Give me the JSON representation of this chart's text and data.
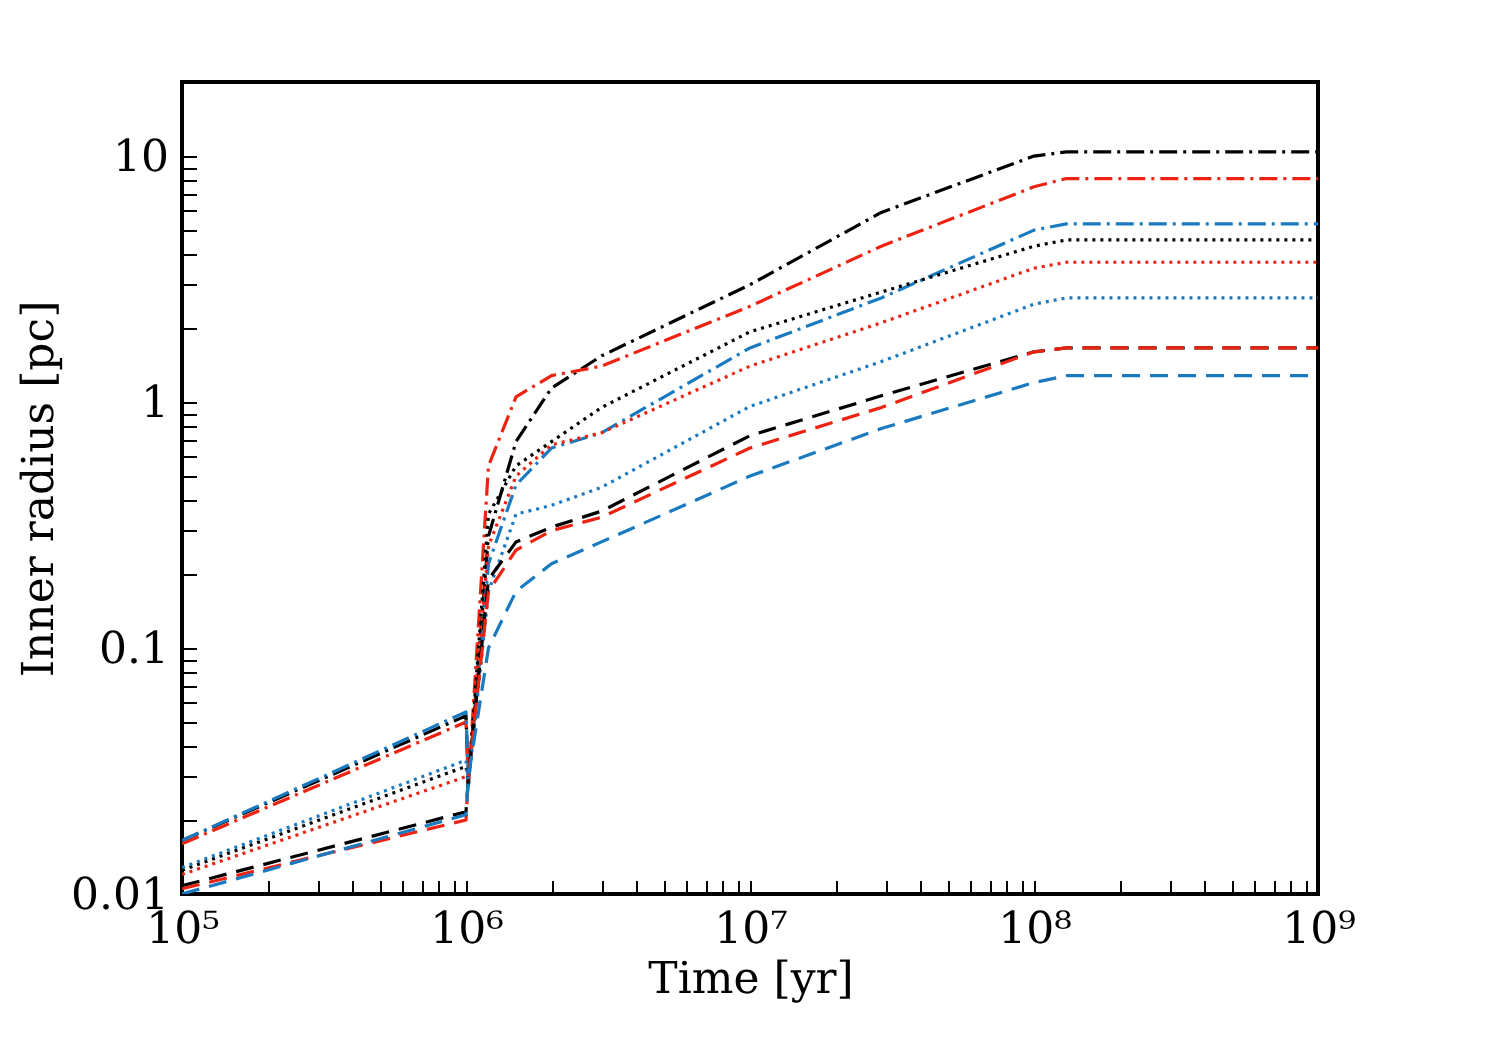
{
  "chart_data": {
    "type": "line",
    "xlabel": "Time [yr]",
    "ylabel": "Inner radius [pc]",
    "log": "xy",
    "grid": false,
    "xlim": [
      100000,
      1000000000
    ],
    "ylim": [
      0.01,
      20
    ],
    "xticks": [
      {
        "value": 100000,
        "label": "10⁵"
      },
      {
        "value": 200000,
        "label": null
      },
      {
        "value": 300000,
        "label": null
      },
      {
        "value": 400000,
        "label": null
      },
      {
        "value": 500000,
        "label": null
      },
      {
        "value": 600000,
        "label": null
      },
      {
        "value": 700000,
        "label": null
      },
      {
        "value": 800000,
        "label": null
      },
      {
        "value": 900000,
        "label": null
      },
      {
        "value": 1000000,
        "label": "10⁶"
      },
      {
        "value": 2000000,
        "label": null
      },
      {
        "value": 3000000,
        "label": null
      },
      {
        "value": 4000000,
        "label": null
      },
      {
        "value": 5000000,
        "label": null
      },
      {
        "value": 6000000,
        "label": null
      },
      {
        "value": 7000000,
        "label": null
      },
      {
        "value": 8000000,
        "label": null
      },
      {
        "value": 9000000,
        "label": null
      },
      {
        "value": 10000000,
        "label": "10⁷"
      },
      {
        "value": 20000000,
        "label": null
      },
      {
        "value": 30000000,
        "label": null
      },
      {
        "value": 40000000,
        "label": null
      },
      {
        "value": 50000000,
        "label": null
      },
      {
        "value": 60000000,
        "label": null
      },
      {
        "value": 70000000,
        "label": null
      },
      {
        "value": 80000000,
        "label": null
      },
      {
        "value": 90000000,
        "label": null
      },
      {
        "value": 100000000,
        "label": "10⁸"
      },
      {
        "value": 200000000,
        "label": null
      },
      {
        "value": 300000000,
        "label": null
      },
      {
        "value": 400000000,
        "label": null
      },
      {
        "value": 500000000,
        "label": null
      },
      {
        "value": 600000000,
        "label": null
      },
      {
        "value": 700000000,
        "label": null
      },
      {
        "value": 800000000,
        "label": null
      },
      {
        "value": 900000000,
        "label": null
      },
      {
        "value": 1000000000,
        "label": "10⁹"
      }
    ],
    "yticks": [
      0.01,
      {
        "value": 0.02,
        "label": null
      },
      {
        "value": 0.03,
        "label": null
      },
      {
        "value": 0.04,
        "label": null
      },
      {
        "value": 0.05,
        "label": null
      },
      {
        "value": 0.06,
        "label": null
      },
      {
        "value": 0.07,
        "label": null
      },
      {
        "value": 0.08,
        "label": null
      },
      {
        "value": 0.09,
        "label": null
      },
      0.1,
      {
        "value": 0.2,
        "label": null
      },
      {
        "value": 0.3,
        "label": null
      },
      {
        "value": 0.4,
        "label": null
      },
      {
        "value": 0.5,
        "label": null
      },
      {
        "value": 0.6,
        "label": null
      },
      {
        "value": 0.7,
        "label": null
      },
      {
        "value": 0.8,
        "label": null
      },
      {
        "value": 0.9,
        "label": null
      },
      1,
      {
        "value": 2,
        "label": null
      },
      {
        "value": 3,
        "label": null
      },
      {
        "value": 4,
        "label": null
      },
      {
        "value": 5,
        "label": null
      },
      {
        "value": 6,
        "label": null
      },
      {
        "value": 7,
        "label": null
      },
      {
        "value": 8,
        "label": null
      },
      {
        "value": 9,
        "label": null
      },
      10,
      {
        "value": 20,
        "label": null
      }
    ],
    "x": [
      100000,
      1000000,
      1020000,
      1200000,
      1500000,
      2000000,
      3000000,
      10000000,
      29000000,
      100000000,
      130000000,
      1000000000
    ],
    "series": [
      {
        "color": "#000000",
        "line_style": "dashdot",
        "values": [
          0.0165,
          0.053,
          0.028,
          0.285,
          0.69,
          1.14,
          1.54,
          3.0,
          5.9,
          10.0,
          10.4,
          10.4
        ]
      },
      {
        "color": "#ee2211",
        "line_style": "dashdot",
        "values": [
          0.016,
          0.05,
          0.028,
          0.55,
          1.05,
          1.28,
          1.4,
          2.45,
          4.3,
          7.5,
          8.1,
          8.1
        ]
      },
      {
        "color": "#1a7abf",
        "line_style": "dashdot",
        "values": [
          0.0165,
          0.055,
          0.028,
          0.22,
          0.46,
          0.65,
          0.75,
          1.66,
          2.65,
          5.0,
          5.3,
          5.3
        ]
      },
      {
        "color": "#000000",
        "line_style": "dotted",
        "values": [
          0.0125,
          0.033,
          0.028,
          0.35,
          0.55,
          0.69,
          0.95,
          1.93,
          2.8,
          4.3,
          4.56,
          4.56
        ]
      },
      {
        "color": "#ee2211",
        "line_style": "dotted",
        "values": [
          0.012,
          0.03,
          0.028,
          0.26,
          0.5,
          0.67,
          0.75,
          1.4,
          2.1,
          3.5,
          3.7,
          3.7
        ]
      },
      {
        "color": "#1a7abf",
        "line_style": "dotted",
        "values": [
          0.0128,
          0.035,
          0.028,
          0.17,
          0.35,
          0.38,
          0.45,
          0.96,
          1.46,
          2.5,
          2.65,
          2.65
        ]
      },
      {
        "color": "#000000",
        "line_style": "dashed",
        "values": [
          0.0108,
          0.0216,
          0.03,
          0.19,
          0.27,
          0.31,
          0.36,
          0.73,
          1.06,
          1.6,
          1.66,
          1.66
        ]
      },
      {
        "color": "#ee2211",
        "line_style": "dashed",
        "values": [
          0.0105,
          0.02,
          0.03,
          0.17,
          0.25,
          0.3,
          0.34,
          0.65,
          0.95,
          1.6,
          1.66,
          1.66
        ]
      },
      {
        "color": "#1a7abf",
        "line_style": "dashed",
        "values": [
          0.01,
          0.021,
          0.03,
          0.1,
          0.17,
          0.22,
          0.27,
          0.5,
          0.78,
          1.2,
          1.28,
          1.28
        ]
      }
    ]
  }
}
